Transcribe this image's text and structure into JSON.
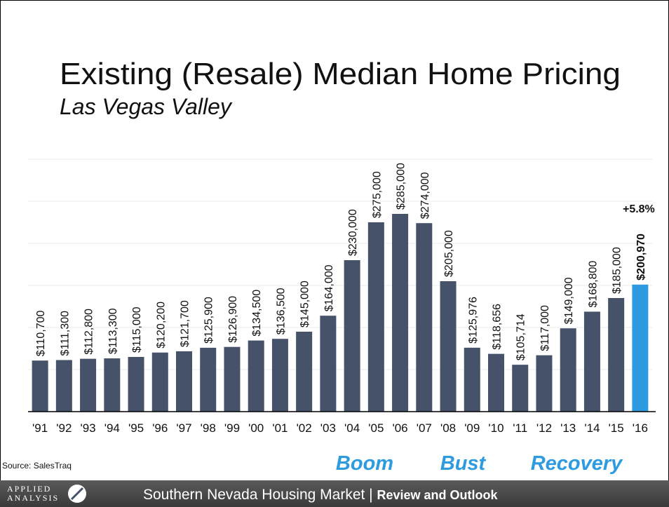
{
  "chart_data": {
    "type": "bar",
    "title": "Existing (Resale) Median Home Pricing",
    "subtitle": "Las Vegas Valley",
    "categories": [
      "'91",
      "'92",
      "'93",
      "'94",
      "'95",
      "'96",
      "'97",
      "'98",
      "'99",
      "'00",
      "'01",
      "'02",
      "'03",
      "'04",
      "'05",
      "'06",
      "'07",
      "'08",
      "'09",
      "'10",
      "'11",
      "'12",
      "'13",
      "'14",
      "'15",
      "'16"
    ],
    "values": [
      110700,
      111300,
      112800,
      113300,
      115000,
      120200,
      121700,
      125900,
      126900,
      134500,
      136500,
      145000,
      164000,
      230000,
      275000,
      285000,
      274000,
      205000,
      125976,
      118656,
      105714,
      117000,
      149000,
      168800,
      185000,
      200970
    ],
    "value_labels": [
      "$110,700",
      "$111,300",
      "$112,800",
      "$113,300",
      "$115,000",
      "$120,200",
      "$121,700",
      "$125,900",
      "$126,900",
      "$134,500",
      "$136,500",
      "$145,000",
      "$164,000",
      "$230,000",
      "$275,000",
      "$285,000",
      "$274,000",
      "$205,000",
      "$125,976",
      "$118,656",
      "$105,714",
      "$117,000",
      "$149,000",
      "$168,800",
      "$185,000",
      "$200,970"
    ],
    "colors": [
      "#45526a",
      "#45526a",
      "#45526a",
      "#45526a",
      "#45526a",
      "#45526a",
      "#45526a",
      "#45526a",
      "#45526a",
      "#45526a",
      "#45526a",
      "#45526a",
      "#45526a",
      "#45526a",
      "#45526a",
      "#45526a",
      "#45526a",
      "#45526a",
      "#45526a",
      "#45526a",
      "#45526a",
      "#45526a",
      "#45526a",
      "#45526a",
      "#45526a",
      "#2e9be0"
    ],
    "ylim": [
      50000,
      350000
    ],
    "yticks": [
      50000,
      100000,
      150000,
      200000,
      250000,
      300000,
      350000
    ],
    "grid": true,
    "annotation": "+5.8%",
    "phases": [
      "Boom",
      "Bust",
      "Recovery"
    ],
    "source": "Source: SalesTraq"
  },
  "footer": {
    "logo": [
      "APPLIED",
      "ANALYSIS"
    ],
    "text": "Southern Nevada Housing Market |",
    "bold": "Review and Outlook"
  }
}
